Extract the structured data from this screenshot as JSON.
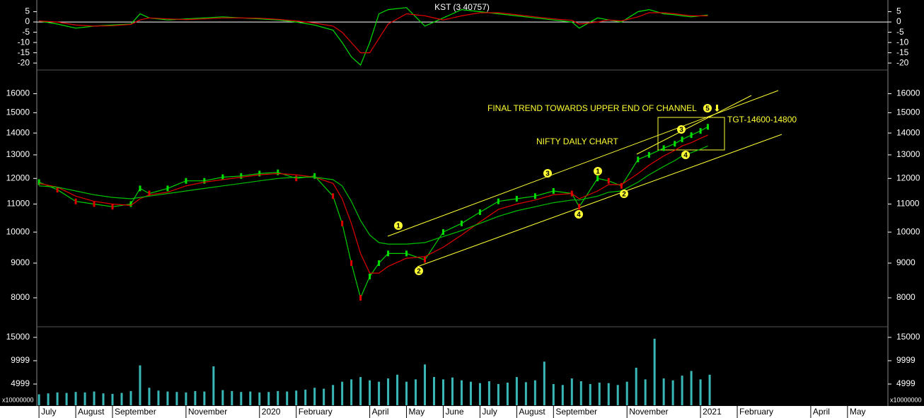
{
  "chart_data": [
    {
      "type": "line",
      "title": "KST (3.40757)",
      "xlim": [
        -0.06,
        23.1
      ],
      "ylim": [
        -23.4,
        10.7
      ],
      "yticks": [
        5,
        0,
        -5,
        -10,
        -15,
        -20
      ],
      "x": [
        0,
        0.5,
        1,
        1.5,
        2,
        2.5,
        2.75,
        3,
        3.5,
        4,
        4.5,
        5,
        5.5,
        6,
        6.5,
        7,
        7.5,
        8,
        8.25,
        8.5,
        8.75,
        9,
        9.25,
        9.5,
        10,
        10.5,
        11,
        11.5,
        12,
        12.5,
        13,
        13.5,
        14,
        14.5,
        14.7,
        15.2,
        15.5,
        15.85,
        16.3,
        16.6,
        17,
        17.3,
        17.5,
        17.75,
        18,
        18.2
      ],
      "series": [
        {
          "color": "#00e000",
          "values": [
            0.5,
            -1,
            -3,
            -2,
            -1.5,
            -1,
            4,
            2,
            1,
            1.5,
            2,
            2.5,
            2,
            1.5,
            1,
            0,
            -1.5,
            -4,
            -10,
            -17,
            -21,
            -10,
            4,
            6,
            7,
            -2,
            2,
            6,
            5,
            4,
            3,
            2,
            1,
            0,
            -3,
            2,
            1,
            0,
            5,
            6,
            4,
            3.5,
            3,
            2.5,
            3,
            3.4
          ]
        },
        {
          "color": "#e00000",
          "values": [
            0.5,
            0,
            -1.5,
            -2,
            -1.8,
            -1.2,
            1,
            2,
            1.5,
            1.2,
            1.5,
            2,
            2,
            1.8,
            1.3,
            0.5,
            -0.5,
            -2,
            -5,
            -10,
            -15,
            -15,
            -8,
            -1,
            4,
            3,
            1,
            3,
            4.5,
            4.5,
            3.5,
            2.5,
            1.5,
            0.8,
            -1,
            0,
            1,
            0.5,
            2.5,
            4.5,
            4.5,
            4,
            3.5,
            3,
            3,
            3
          ]
        }
      ]
    },
    {
      "type": "line",
      "log": true,
      "xlim": [
        -0.06,
        23.1
      ],
      "ylim": [
        7250,
        17300
      ],
      "yticks": [
        16000,
        15000,
        14000,
        13000,
        12000,
        11000,
        10000,
        9000,
        8000
      ],
      "x": [
        0,
        0.5,
        1,
        1.5,
        2,
        2.5,
        2.75,
        3,
        3.5,
        4,
        4.5,
        5,
        5.5,
        6,
        6.5,
        7,
        7.5,
        8,
        8.25,
        8.5,
        8.75,
        9,
        9.25,
        9.5,
        10,
        10.5,
        11,
        11.5,
        12,
        12.5,
        13,
        13.5,
        14,
        14.5,
        14.7,
        15.2,
        15.5,
        15.85,
        16.3,
        16.6,
        17,
        17.3,
        17.5,
        17.75,
        18,
        18.2
      ],
      "series": [
        {
          "color": "#00d000",
          "values": [
            11850,
            11550,
            11100,
            11000,
            10900,
            11000,
            11600,
            11400,
            11600,
            11900,
            11900,
            12050,
            12100,
            12200,
            12250,
            12000,
            12100,
            11300,
            10300,
            9000,
            8000,
            8600,
            9000,
            9300,
            9300,
            9100,
            10000,
            10300,
            10700,
            11100,
            11200,
            11300,
            11500,
            11400,
            10900,
            12000,
            11900,
            11700,
            12800,
            13000,
            13300,
            13500,
            13700,
            13900,
            14100,
            14300
          ]
        },
        {
          "color": "#e00000",
          "values": [
            11800,
            11650,
            11300,
            11100,
            11000,
            10950,
            11200,
            11350,
            11450,
            11700,
            11850,
            11950,
            12050,
            12150,
            12200,
            12150,
            12050,
            11800,
            11200,
            10300,
            9300,
            8700,
            8700,
            8900,
            9150,
            9200,
            9500,
            9900,
            10350,
            10800,
            11000,
            11150,
            11350,
            11400,
            11200,
            11500,
            11750,
            11750,
            12200,
            12550,
            12950,
            13200,
            13400,
            13550,
            13750,
            13900
          ]
        },
        {
          "color": "#00c000",
          "values": [
            11700,
            11650,
            11500,
            11350,
            11250,
            11200,
            11250,
            11300,
            11400,
            11500,
            11600,
            11700,
            11800,
            11900,
            12000,
            12050,
            12050,
            11950,
            11700,
            11100,
            10400,
            9900,
            9650,
            9600,
            9600,
            9650,
            9850,
            10050,
            10300,
            10550,
            10750,
            10900,
            11050,
            11150,
            11150,
            11300,
            11450,
            11500,
            11850,
            12150,
            12500,
            12750,
            12950,
            13100,
            13250,
            13400
          ]
        }
      ],
      "annotations": [
        "NIFTY DAILY CHART",
        "FINAL TREND TOWARDS UPPER END OF CHANNEL",
        "TGT-14600-14800"
      ],
      "wave_labels": [
        "1",
        "2",
        "3",
        "4",
        "1",
        "2",
        "3",
        "4",
        "5"
      ]
    },
    {
      "type": "bar",
      "unit": "x10000000",
      "color": "#3ab8b8",
      "xlim": [
        -0.06,
        23.1
      ],
      "ylim": [
        0,
        17270
      ],
      "yticks": [
        15000,
        9999,
        4999
      ],
      "x": [
        0,
        0.25,
        0.5,
        0.75,
        1,
        1.25,
        1.5,
        1.75,
        2,
        2.25,
        2.5,
        2.75,
        3,
        3.25,
        3.5,
        3.75,
        4,
        4.25,
        4.5,
        4.75,
        5,
        5.25,
        5.5,
        5.75,
        6,
        6.25,
        6.5,
        6.75,
        7,
        7.25,
        7.5,
        7.75,
        8,
        8.25,
        8.5,
        8.75,
        9,
        9.25,
        9.5,
        9.75,
        10,
        10.25,
        10.5,
        10.75,
        11,
        11.25,
        11.5,
        11.75,
        12,
        12.25,
        12.5,
        12.75,
        13,
        13.25,
        13.5,
        13.75,
        14,
        14.25,
        14.5,
        14.75,
        15,
        15.25,
        15.5,
        15.75,
        16,
        16.25,
        16.5,
        16.75,
        17,
        17.25,
        17.5,
        17.75,
        18,
        18.25
      ],
      "values": [
        2800,
        3000,
        3200,
        3100,
        3300,
        3200,
        3400,
        3000,
        2900,
        3100,
        3500,
        9000,
        4200,
        3600,
        3400,
        3300,
        3200,
        3500,
        3400,
        8800,
        3700,
        3500,
        3300,
        3400,
        3200,
        3300,
        3500,
        3400,
        3600,
        3800,
        4200,
        4000,
        4800,
        5500,
        6000,
        6500,
        5800,
        5500,
        6200,
        7000,
        5500,
        6000,
        9200,
        6500,
        6000,
        6400,
        5800,
        5500,
        5200,
        5600,
        5000,
        5300,
        6500,
        5400,
        5800,
        9800,
        5000,
        4800,
        6200,
        5600,
        5000,
        5300,
        5200,
        4800,
        5500,
        8500,
        6000,
        14700,
        6200,
        5800,
        6800,
        7800,
        6000,
        7000
      ],
      "xticks": [
        {
          "value": 0,
          "label": "July"
        },
        {
          "value": 1,
          "label": "August"
        },
        {
          "value": 2,
          "label": "September"
        },
        {
          "value": 4,
          "label": "November"
        },
        {
          "value": 6,
          "label": "2020"
        },
        {
          "value": 7,
          "label": "February"
        },
        {
          "value": 9,
          "label": "April"
        },
        {
          "value": 10,
          "label": "May"
        },
        {
          "value": 11,
          "label": "June"
        },
        {
          "value": 12,
          "label": "July"
        },
        {
          "value": 13,
          "label": "August"
        },
        {
          "value": 14,
          "label": "September"
        },
        {
          "value": 16,
          "label": "November"
        },
        {
          "value": 18,
          "label": "2021"
        },
        {
          "value": 19,
          "label": "February"
        },
        {
          "value": 21,
          "label": "April"
        },
        {
          "value": 22,
          "label": "May"
        }
      ]
    }
  ]
}
